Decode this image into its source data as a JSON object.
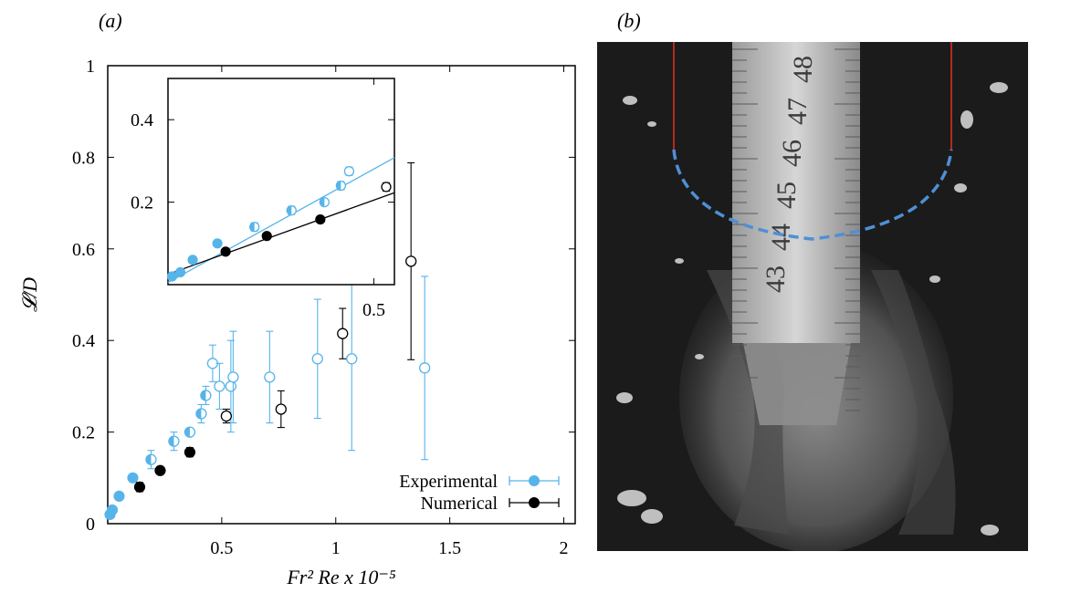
{
  "panels": {
    "a_label": "(a)",
    "b_label": "(b)"
  },
  "axes": {
    "ylabel_main": "𝓛/D",
    "xlabel": "Fr² Re x 10⁻⁵"
  },
  "legend": {
    "experimental": "Experimental",
    "numerical": "Numerical"
  },
  "colors": {
    "experimental": "#56B4E9",
    "numerical": "#000000"
  },
  "photo": {
    "ruler_marks": [
      "48",
      "47",
      "46",
      "45",
      "44",
      "43"
    ]
  },
  "chart_data": [
    {
      "type": "scatter",
      "xlim": [
        0,
        2.05
      ],
      "ylim": [
        0,
        1
      ],
      "xticks": [
        0.5,
        1,
        1.5,
        2
      ],
      "xtick_labels": [
        "0.5",
        "1",
        "1.5",
        "2"
      ],
      "yticks": [
        0,
        0.2,
        0.4,
        0.6,
        0.8,
        1
      ],
      "ytick_labels": [
        "0",
        "0.2",
        "0.4",
        "0.6",
        "0.8",
        "1"
      ],
      "legend_position": "bottom-right",
      "series": [
        {
          "name": "Experimental",
          "points": [
            {
              "x": 0.01,
              "y": 0.02,
              "fill": "full",
              "err": 0
            },
            {
              "x": 0.02,
              "y": 0.03,
              "fill": "full",
              "err": 0
            },
            {
              "x": 0.05,
              "y": 0.06,
              "fill": "full",
              "err": 0
            },
            {
              "x": 0.11,
              "y": 0.1,
              "fill": "full",
              "err": 0
            },
            {
              "x": 0.19,
              "y": 0.14,
              "fill": "half",
              "err": 0.02
            },
            {
              "x": 0.29,
              "y": 0.18,
              "fill": "half",
              "err": 0.02
            },
            {
              "x": 0.36,
              "y": 0.2,
              "fill": "half",
              "err": 0
            },
            {
              "x": 0.41,
              "y": 0.24,
              "fill": "half",
              "err": 0.02
            },
            {
              "x": 0.43,
              "y": 0.28,
              "fill": "half",
              "err": 0.02
            },
            {
              "x": 0.46,
              "y": 0.35,
              "fill": "open",
              "err": 0.04
            },
            {
              "x": 0.49,
              "y": 0.3,
              "fill": "open",
              "err": 0.05
            },
            {
              "x": 0.54,
              "y": 0.3,
              "fill": "open",
              "err": 0.1
            },
            {
              "x": 0.55,
              "y": 0.32,
              "fill": "open",
              "err": 0.1
            },
            {
              "x": 0.71,
              "y": 0.32,
              "fill": "open",
              "err": 0.1
            },
            {
              "x": 0.92,
              "y": 0.36,
              "fill": "open",
              "err": 0.13
            },
            {
              "x": 1.07,
              "y": 0.36,
              "fill": "open",
              "err": 0.2
            },
            {
              "x": 1.39,
              "y": 0.34,
              "fill": "open",
              "err": 0.2
            }
          ]
        },
        {
          "name": "Numerical",
          "points": [
            {
              "x": 0.14,
              "y": 0.08,
              "fill": "full",
              "err": 0.01
            },
            {
              "x": 0.23,
              "y": 0.116,
              "fill": "full",
              "err": 0
            },
            {
              "x": 0.36,
              "y": 0.156,
              "fill": "full",
              "err": 0.01
            },
            {
              "x": 0.52,
              "y": 0.235,
              "fill": "open",
              "err": 0.015
            },
            {
              "x": 0.76,
              "y": 0.25,
              "fill": "open",
              "err": 0.04
            },
            {
              "x": 1.03,
              "y": 0.415,
              "fill": "open",
              "err": 0.055
            },
            {
              "x": 1.33,
              "y": 0.573,
              "fill": "open",
              "err": 0.215
            }
          ]
        }
      ]
    },
    {
      "type": "scatter",
      "xlim": [
        0,
        0.55
      ],
      "ylim": [
        0,
        0.5
      ],
      "xticks": [
        0.5
      ],
      "xtick_labels": [
        "0.5"
      ],
      "yticks": [
        0.2,
        0.4
      ],
      "ytick_labels": [
        "0.2",
        "0.4"
      ],
      "fit_lines": [
        {
          "name": "Experimental",
          "x": [
            0,
            0.55
          ],
          "y": [
            0.005,
            0.308
          ]
        },
        {
          "name": "Numerical",
          "x": [
            0,
            0.55
          ],
          "y": [
            0.025,
            0.223
          ]
        }
      ],
      "series": [
        {
          "name": "Experimental",
          "points": [
            {
              "x": 0.01,
              "y": 0.02,
              "fill": "full",
              "err": 0
            },
            {
              "x": 0.03,
              "y": 0.03,
              "fill": "full",
              "err": 0
            },
            {
              "x": 0.06,
              "y": 0.06,
              "fill": "full",
              "err": 0
            },
            {
              "x": 0.12,
              "y": 0.1,
              "fill": "full",
              "err": 0
            },
            {
              "x": 0.21,
              "y": 0.14,
              "fill": "half",
              "err": 0.01
            },
            {
              "x": 0.3,
              "y": 0.18,
              "fill": "half",
              "err": 0.01
            },
            {
              "x": 0.38,
              "y": 0.2,
              "fill": "half",
              "err": 0
            },
            {
              "x": 0.42,
              "y": 0.24,
              "fill": "half",
              "err": 0.01
            },
            {
              "x": 0.44,
              "y": 0.275,
              "fill": "open",
              "err": 0.01
            }
          ]
        },
        {
          "name": "Numerical",
          "points": [
            {
              "x": 0.14,
              "y": 0.08,
              "fill": "full",
              "err": 0.005
            },
            {
              "x": 0.24,
              "y": 0.118,
              "fill": "full",
              "err": 0
            },
            {
              "x": 0.37,
              "y": 0.158,
              "fill": "full",
              "err": 0.005
            },
            {
              "x": 0.53,
              "y": 0.237,
              "fill": "open",
              "err": 0.01
            }
          ]
        }
      ]
    }
  ]
}
